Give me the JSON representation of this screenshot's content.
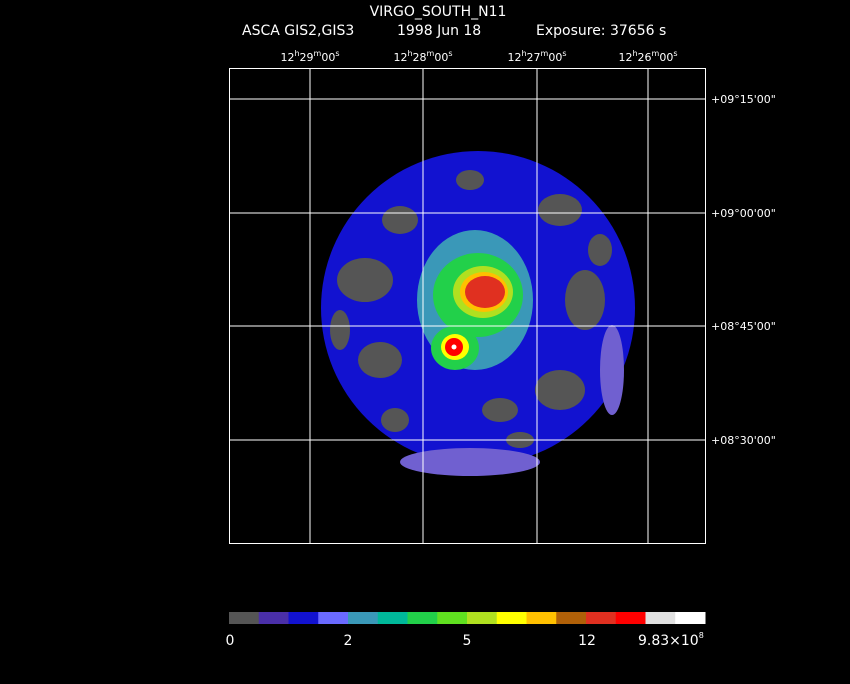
{
  "header": {
    "title": "VIRGO_SOUTH_N11",
    "instrument": "ASCA GIS2,GIS3",
    "date": "1998 Jun 18",
    "exposure": "Exposure: 37656 s"
  },
  "ra_labels": [
    {
      "hours": "12",
      "minutes": "29",
      "seconds": "00"
    },
    {
      "hours": "12",
      "minutes": "28",
      "seconds": "00"
    },
    {
      "hours": "12",
      "minutes": "27",
      "seconds": "00"
    },
    {
      "hours": "12",
      "minutes": "26",
      "seconds": "00"
    }
  ],
  "ra_units": [
    "h",
    "m",
    "s"
  ],
  "dec_labels": [
    "+09°15'00\"",
    "+09°00'00\"",
    "+08°45'00\"",
    "+08°30'00\""
  ],
  "colorbar": {
    "colors": [
      "#555555",
      "#4a2fa8",
      "#1212d0",
      "#6a6aff",
      "#3a98b8",
      "#00b89a",
      "#22d04a",
      "#60e020",
      "#b0e020",
      "#ffff00",
      "#ffc000",
      "#b06008",
      "#e03020",
      "#ff0000",
      "#e0e0e0",
      "#ffffff"
    ],
    "labels": [
      "0",
      "2",
      "5",
      "12"
    ],
    "max_label": {
      "mantissa": "9.83×10",
      "exponent": "8"
    }
  }
}
